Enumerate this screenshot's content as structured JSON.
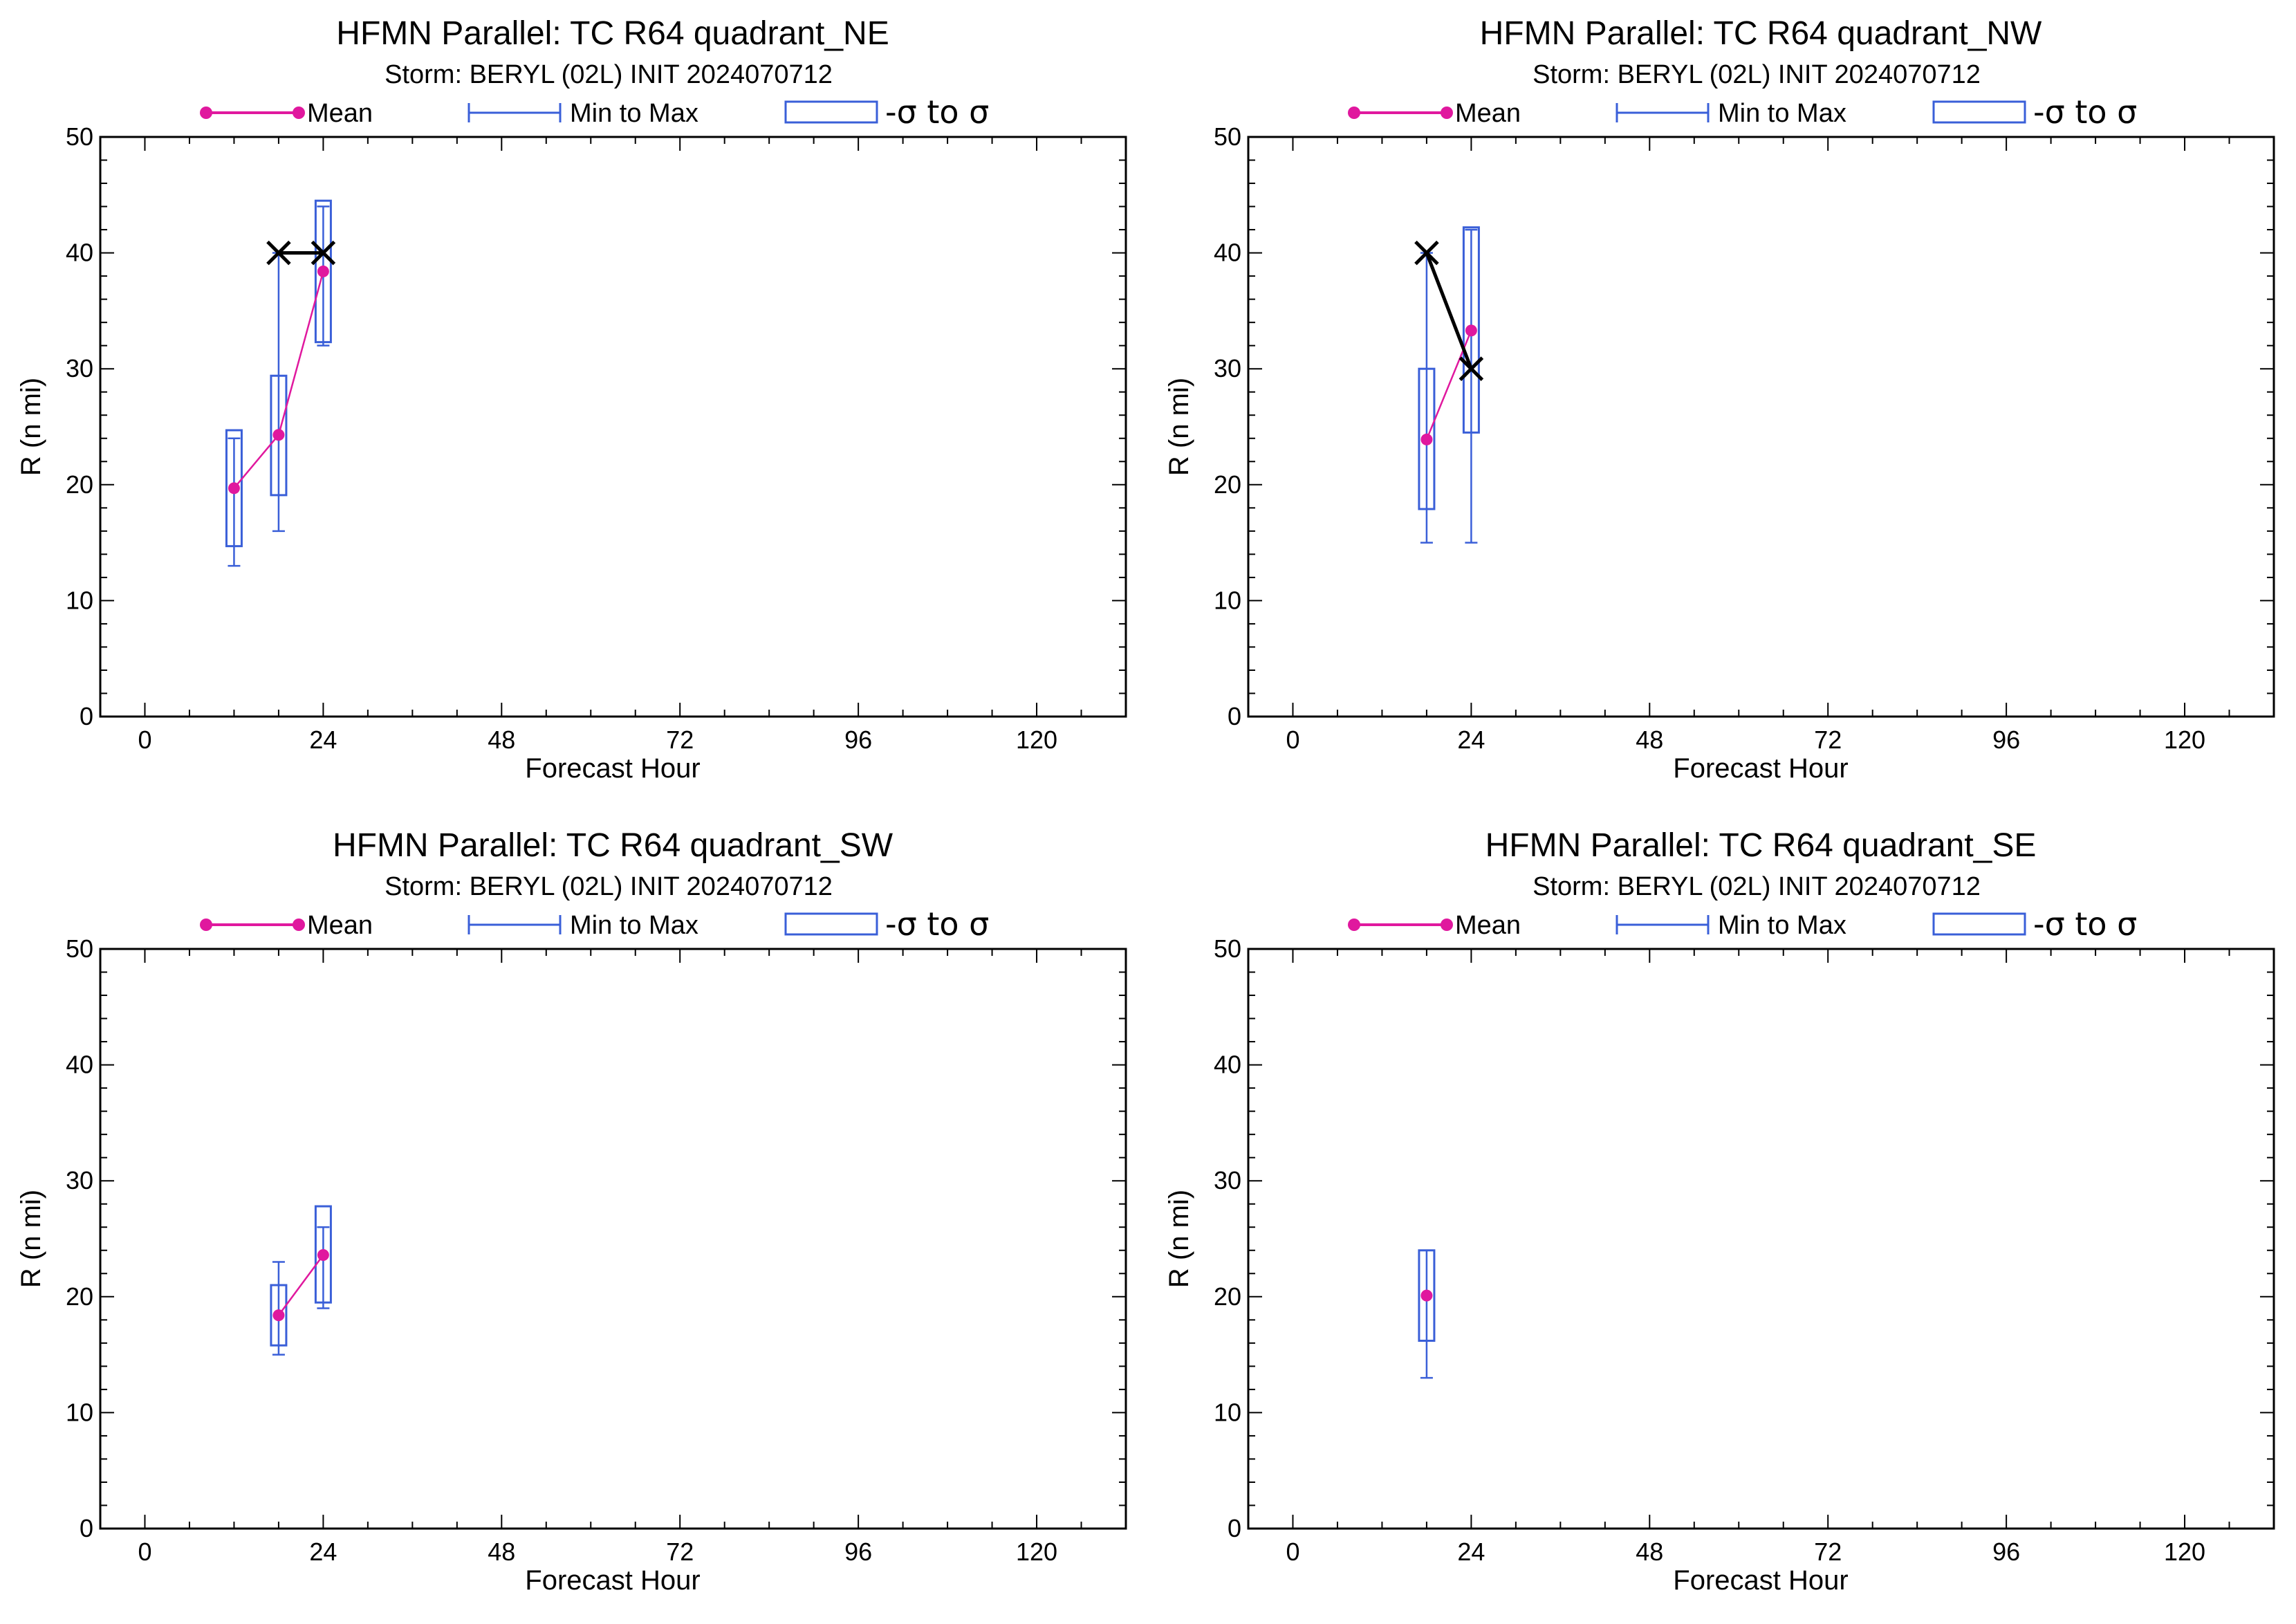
{
  "colors": {
    "mean": "#e0189e",
    "range": "#3a5fd8",
    "obs": "#000000"
  },
  "legend": {
    "mean": "Mean",
    "minmax": "Min to Max",
    "sigma": "-σ to σ"
  },
  "chart_data": [
    {
      "type": "line",
      "title": "HFMN Parallel: TC  R64 quadrant_NE",
      "subtitle": "Storm: BERYL (02L) INIT 2024070712",
      "xlabel": "Forecast Hour",
      "ylabel": "R (n mi)",
      "xlim": [
        -6,
        132
      ],
      "ylim": [
        0,
        50
      ],
      "xticks": [
        0,
        24,
        48,
        72,
        96,
        120
      ],
      "xtick_labels": [
        "0",
        "24",
        "48",
        "72",
        "96",
        "120"
      ],
      "yticks": [
        0,
        10,
        20,
        30,
        40,
        50
      ],
      "ytick_labels": [
        "0",
        "10",
        "20",
        "30",
        "40",
        "50"
      ],
      "legend_position": "top",
      "series": [
        {
          "name": "Mean",
          "x": [
            12,
            18,
            24
          ],
          "y": [
            19.7,
            24.3,
            38.4
          ]
        },
        {
          "name": "Min to Max",
          "x": [
            12,
            18,
            24
          ],
          "min": [
            13,
            16,
            32
          ],
          "max": [
            24,
            40,
            44
          ]
        },
        {
          "name": "-σ to σ",
          "x": [
            12,
            18,
            24
          ],
          "low": [
            14.7,
            19.1,
            32.3
          ],
          "high": [
            24.7,
            29.4,
            44.5
          ]
        },
        {
          "x": [
            18,
            24
          ],
          "y": [
            40,
            40
          ]
        }
      ]
    },
    {
      "type": "line",
      "title": "HFMN Parallel: TC  R64 quadrant_NW",
      "subtitle": "Storm: BERYL (02L) INIT 2024070712",
      "xlabel": "Forecast Hour",
      "ylabel": "R (n mi)",
      "xlim": [
        -6,
        132
      ],
      "ylim": [
        0,
        50
      ],
      "xticks": [
        0,
        24,
        48,
        72,
        96,
        120
      ],
      "xtick_labels": [
        "0",
        "24",
        "48",
        "72",
        "96",
        "120"
      ],
      "yticks": [
        0,
        10,
        20,
        30,
        40,
        50
      ],
      "ytick_labels": [
        "0",
        "10",
        "20",
        "30",
        "40",
        "50"
      ],
      "legend_position": "top",
      "series": [
        {
          "name": "Mean",
          "x": [
            18,
            24
          ],
          "y": [
            23.9,
            33.3
          ]
        },
        {
          "name": "Min to Max",
          "x": [
            18,
            24
          ],
          "min": [
            15,
            15
          ],
          "max": [
            40,
            42
          ]
        },
        {
          "name": "-σ to σ",
          "x": [
            18,
            24
          ],
          "low": [
            17.9,
            24.5
          ],
          "high": [
            30.0,
            42.2
          ]
        },
        {
          "x": [
            18,
            24
          ],
          "y": [
            40,
            30
          ]
        }
      ]
    },
    {
      "type": "line",
      "title": "HFMN Parallel: TC  R64 quadrant_SW",
      "subtitle": "Storm: BERYL (02L) INIT 2024070712",
      "xlabel": "Forecast Hour",
      "ylabel": "R (n mi)",
      "xlim": [
        -6,
        132
      ],
      "ylim": [
        0,
        50
      ],
      "xticks": [
        0,
        24,
        48,
        72,
        96,
        120
      ],
      "xtick_labels": [
        "0",
        "24",
        "48",
        "72",
        "96",
        "120"
      ],
      "yticks": [
        0,
        10,
        20,
        30,
        40,
        50
      ],
      "ytick_labels": [
        "0",
        "10",
        "20",
        "30",
        "40",
        "50"
      ],
      "legend_position": "top",
      "series": [
        {
          "name": "Mean",
          "x": [
            18,
            24
          ],
          "y": [
            18.4,
            23.6
          ]
        },
        {
          "name": "Min to Max",
          "x": [
            18,
            24
          ],
          "min": [
            15,
            19
          ],
          "max": [
            23,
            26
          ]
        },
        {
          "name": "-σ to σ",
          "x": [
            18,
            24
          ],
          "low": [
            15.8,
            19.5
          ],
          "high": [
            21.0,
            27.8
          ]
        }
      ]
    },
    {
      "type": "line",
      "title": "HFMN Parallel: TC  R64 quadrant_SE",
      "subtitle": "Storm: BERYL (02L) INIT 2024070712",
      "xlabel": "Forecast Hour",
      "ylabel": "R (n mi)",
      "xlim": [
        -6,
        132
      ],
      "ylim": [
        0,
        50
      ],
      "xticks": [
        0,
        24,
        48,
        72,
        96,
        120
      ],
      "xtick_labels": [
        "0",
        "24",
        "48",
        "72",
        "96",
        "120"
      ],
      "yticks": [
        0,
        10,
        20,
        30,
        40,
        50
      ],
      "ytick_labels": [
        "0",
        "10",
        "20",
        "30",
        "40",
        "50"
      ],
      "legend_position": "top",
      "series": [
        {
          "name": "Mean",
          "x": [
            18
          ],
          "y": [
            20.1
          ]
        },
        {
          "name": "Min to Max",
          "x": [
            18
          ],
          "min": [
            13
          ],
          "max": [
            24
          ]
        },
        {
          "name": "-σ to σ",
          "x": [
            18
          ],
          "low": [
            16.2
          ],
          "high": [
            24.0
          ]
        }
      ]
    }
  ]
}
